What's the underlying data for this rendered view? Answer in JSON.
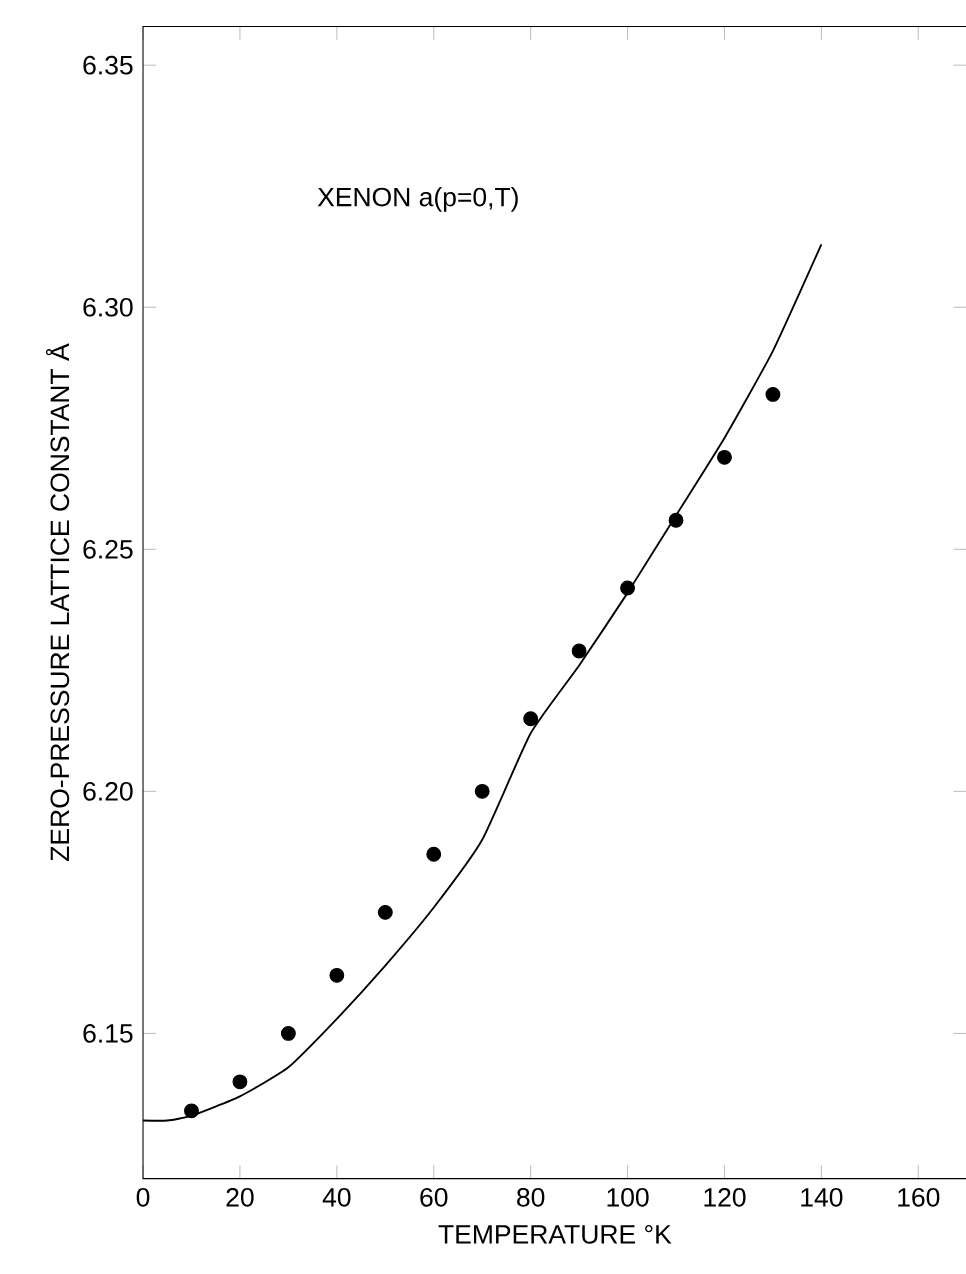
{
  "chart_data": {
    "type": "scatter",
    "xlabel": "TEMPERATURE °K",
    "ylabel": "ZERO-PRESSURE LATTICE CONSTANT Å",
    "annotations": [
      "XENON a(p=0,T)"
    ],
    "xlim": [
      0,
      170
    ],
    "ylim": [
      6.12,
      6.358
    ],
    "xticks": [
      0,
      20,
      40,
      60,
      80,
      100,
      120,
      140,
      160
    ],
    "yticks": [
      {
        "value": 6.15,
        "label": "6.15"
      },
      {
        "value": 6.2,
        "label": "6.20"
      },
      {
        "value": 6.25,
        "label": "6.25"
      },
      {
        "value": 6.3,
        "label": "6.30"
      },
      {
        "value": 6.35,
        "label": "6.35"
      }
    ],
    "series": [
      {
        "color": "#000000",
        "marker": "circle",
        "x": [
          10,
          20,
          30,
          40,
          50,
          60,
          70,
          80,
          90,
          100,
          110,
          120,
          130
        ],
        "values": [
          6.134,
          6.14,
          6.15,
          6.162,
          6.175,
          6.187,
          6.2,
          6.215,
          6.229,
          6.242,
          6.256,
          6.269,
          6.282
        ]
      },
      {
        "type": "line",
        "color": "#000000",
        "marker": "none",
        "line_style": "solid",
        "x": [
          0,
          5,
          10,
          20,
          30,
          40,
          50,
          60,
          70,
          80,
          90,
          100,
          110,
          120,
          130,
          140
        ],
        "values": [
          6.132,
          6.132,
          6.133,
          6.137,
          6.143,
          6.153,
          6.164,
          6.176,
          6.19,
          6.212,
          6.226,
          6.241,
          6.257,
          6.273,
          6.291,
          6.313
        ]
      }
    ]
  }
}
